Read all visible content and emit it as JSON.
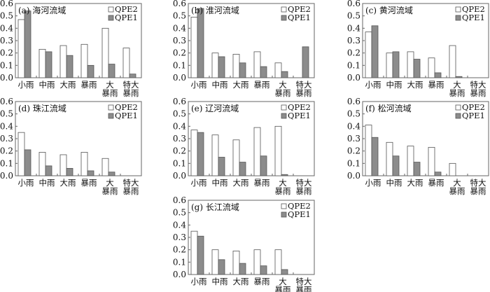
{
  "colors": {
    "qpe2_fill": "#ffffff",
    "qpe1_fill": "#8c8c8c",
    "bar_stroke": "#555555",
    "axis": "#666666"
  },
  "chart_data": [
    {
      "type": "bar",
      "title": "(a) 海河流域",
      "ylim": [
        0,
        0.6
      ],
      "yticks": [
        "0.0",
        "0.1",
        "0.2",
        "0.3",
        "0.4",
        "0.5",
        "0.6"
      ],
      "legend": "top-right",
      "categories": [
        [
          "小雨"
        ],
        [
          "中雨"
        ],
        [
          "大雨"
        ],
        [
          "暴雨"
        ],
        [
          "大",
          "暴雨"
        ],
        [
          "特大",
          "暴雨"
        ]
      ],
      "series": [
        {
          "name": "QPE2",
          "values": [
            0.47,
            0.23,
            0.26,
            0.27,
            0.4,
            0.24
          ]
        },
        {
          "name": "QPE1",
          "values": [
            0.54,
            0.21,
            0.18,
            0.1,
            0.11,
            0.03
          ]
        }
      ]
    },
    {
      "type": "bar",
      "title": "(b) 淮河流域",
      "ylim": [
        0,
        0.6
      ],
      "yticks": [
        "0.0",
        "0.1",
        "0.2",
        "0.3",
        "0.4",
        "0.5",
        "0.6"
      ],
      "legend": "top-right",
      "categories": [
        [
          "小雨"
        ],
        [
          "中雨"
        ],
        [
          "大雨"
        ],
        [
          "暴雨"
        ],
        [
          "大",
          "暴雨"
        ],
        [
          "特大",
          "暴雨"
        ]
      ],
      "series": [
        {
          "name": "QPE2",
          "values": [
            0.49,
            0.2,
            0.19,
            0.21,
            0.12,
            null
          ]
        },
        {
          "name": "QPE1",
          "values": [
            0.56,
            0.17,
            0.12,
            0.09,
            0.05,
            0.25
          ]
        }
      ]
    },
    {
      "type": "bar",
      "title": "(c) 黄河流域",
      "ylim": [
        0,
        0.6
      ],
      "yticks": [
        "0.0",
        "0.1",
        "0.2",
        "0.3",
        "0.4",
        "0.5",
        "0.6"
      ],
      "legend": "top-right",
      "categories": [
        [
          "小雨"
        ],
        [
          "中雨"
        ],
        [
          "大雨"
        ],
        [
          "暴雨"
        ],
        [
          "大",
          "暴雨"
        ],
        [
          "特大",
          "暴雨"
        ]
      ],
      "series": [
        {
          "name": "QPE2",
          "values": [
            0.37,
            0.2,
            0.21,
            0.16,
            0.26,
            null
          ]
        },
        {
          "name": "QPE1",
          "values": [
            0.42,
            0.21,
            0.15,
            0.04,
            0.01,
            null
          ]
        }
      ]
    },
    {
      "type": "bar",
      "title": "(d) 珠江流域",
      "ylim": [
        0,
        0.6
      ],
      "yticks": [
        "0.0",
        "0.1",
        "0.2",
        "0.3",
        "0.4",
        "0.5",
        "0.6"
      ],
      "legend": "top-right",
      "categories": [
        [
          "小雨"
        ],
        [
          "中雨"
        ],
        [
          "大雨"
        ],
        [
          "暴雨"
        ],
        [
          "大",
          "暴雨"
        ],
        [
          "特大",
          "暴雨"
        ]
      ],
      "series": [
        {
          "name": "QPE2",
          "values": [
            0.35,
            0.19,
            0.17,
            0.19,
            0.14,
            null
          ]
        },
        {
          "name": "QPE1",
          "values": [
            0.21,
            0.08,
            0.06,
            0.04,
            0.03,
            null
          ]
        }
      ]
    },
    {
      "type": "bar",
      "title": "(e) 辽河流域",
      "ylim": [
        0,
        0.6
      ],
      "yticks": [
        "0.0",
        "0.1",
        "0.2",
        "0.3",
        "0.4",
        "0.5",
        "0.6"
      ],
      "legend": "top-right",
      "categories": [
        [
          "小雨"
        ],
        [
          "中雨"
        ],
        [
          "大雨"
        ],
        [
          "暴雨"
        ],
        [
          "大",
          "暴雨"
        ],
        [
          "特大",
          "暴雨"
        ]
      ],
      "series": [
        {
          "name": "QPE2",
          "values": [
            0.37,
            0.33,
            0.29,
            0.39,
            0.4,
            null
          ]
        },
        {
          "name": "QPE1",
          "values": [
            0.35,
            0.15,
            0.11,
            0.16,
            0.01,
            null
          ]
        }
      ]
    },
    {
      "type": "bar",
      "title": "(f) 松河流域",
      "ylim": [
        0,
        0.6
      ],
      "yticks": [
        "0.0",
        "0.1",
        "0.2",
        "0.3",
        "0.4",
        "0.5",
        "0.6"
      ],
      "legend": "top-right",
      "categories": [
        [
          "小雨"
        ],
        [
          "中雨"
        ],
        [
          "大雨"
        ],
        [
          "暴雨"
        ],
        [
          "大",
          "暴雨"
        ],
        [
          "特大",
          "暴雨"
        ]
      ],
      "series": [
        {
          "name": "QPE2",
          "values": [
            0.41,
            0.27,
            0.24,
            0.23,
            0.1,
            null
          ]
        },
        {
          "name": "QPE1",
          "values": [
            0.31,
            0.16,
            0.11,
            0.03,
            null,
            null
          ]
        }
      ]
    },
    {
      "type": "bar",
      "title": "(g) 长江流域",
      "ylim": [
        0,
        0.6
      ],
      "yticks": [
        "0.0",
        "0.1",
        "0.2",
        "0.3",
        "0.4",
        "0.5",
        "0.6"
      ],
      "legend": "top-right",
      "categories": [
        [
          "小雨"
        ],
        [
          "中雨"
        ],
        [
          "大雨"
        ],
        [
          "暴雨"
        ],
        [
          "大",
          "暴雨"
        ],
        [
          "特大",
          "暴雨"
        ]
      ],
      "series": [
        {
          "name": "QPE2",
          "values": [
            0.35,
            0.2,
            0.19,
            0.2,
            0.2,
            null
          ]
        },
        {
          "name": "QPE1",
          "values": [
            0.31,
            0.12,
            0.09,
            0.07,
            0.04,
            null
          ]
        }
      ]
    }
  ]
}
